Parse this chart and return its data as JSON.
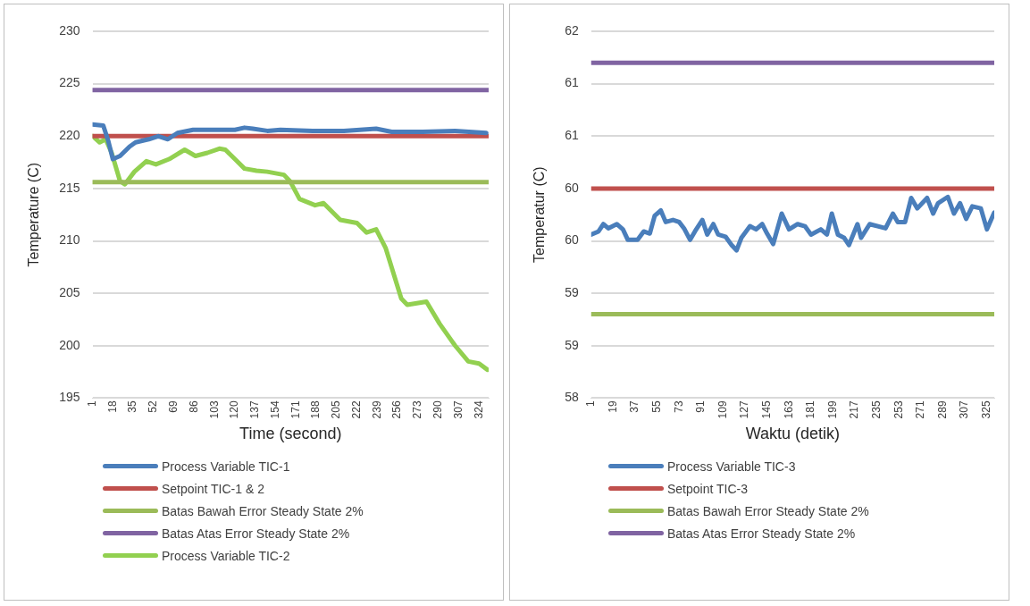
{
  "chart_data": [
    {
      "type": "line",
      "xlabel": "Time (second)",
      "ylabel": "Temperature (C)",
      "xlim": [
        1,
        332
      ],
      "xticks": [
        1,
        18,
        35,
        52,
        69,
        86,
        103,
        120,
        137,
        154,
        171,
        188,
        205,
        222,
        239,
        256,
        273,
        290,
        307,
        324
      ],
      "ylim": [
        195,
        230
      ],
      "yticks": [
        195,
        200,
        205,
        210,
        215,
        220,
        225,
        230
      ],
      "grid": "y",
      "legend": "bottom",
      "marker": "none",
      "series": [
        {
          "name": "Process Variable TIC-1",
          "color": "#4a7ebb",
          "x": [
            1,
            10,
            14,
            18,
            24,
            32,
            37,
            48,
            56,
            64,
            72,
            85,
            104,
            120,
            128,
            135,
            147,
            158,
            185,
            211,
            238,
            251,
            277,
            304,
            330
          ],
          "values": [
            221.1,
            221.0,
            219.6,
            217.8,
            218.1,
            219.0,
            219.4,
            219.7,
            220.0,
            219.7,
            220.3,
            220.6,
            220.6,
            220.6,
            220.8,
            220.7,
            220.5,
            220.6,
            220.5,
            220.5,
            220.7,
            220.4,
            220.4,
            220.5,
            220.3
          ]
        },
        {
          "name": "Setpoint TIC-1 & 2",
          "color": "#c0504d",
          "x": [
            1,
            332
          ],
          "values": [
            220,
            220
          ]
        },
        {
          "name": "Batas Bawah Error Steady State 2%",
          "color": "#9bbb59",
          "x": [
            1,
            332
          ],
          "values": [
            215.6,
            215.6
          ]
        },
        {
          "name": "Batas Atas Error Steady State 2%",
          "color": "#8064a2",
          "x": [
            1,
            332
          ],
          "values": [
            224.4,
            224.4
          ]
        },
        {
          "name": "Process Variable TIC-2",
          "color": "#92d050",
          "x": [
            1,
            7,
            12,
            17,
            24,
            28,
            36,
            46,
            54,
            65,
            78,
            87,
            97,
            107,
            112,
            120,
            128,
            138,
            147,
            161,
            166,
            174,
            187,
            194,
            208,
            222,
            230,
            238,
            246,
            259,
            264,
            280,
            291,
            304,
            315,
            324,
            331
          ],
          "values": [
            220.0,
            219.4,
            219.7,
            218.4,
            215.7,
            215.4,
            216.6,
            217.6,
            217.3,
            217.8,
            218.7,
            218.1,
            218.4,
            218.8,
            218.7,
            217.8,
            216.9,
            216.7,
            216.6,
            216.3,
            215.7,
            214.0,
            213.4,
            213.6,
            212.0,
            211.7,
            210.8,
            211.1,
            209.3,
            204.5,
            203.9,
            204.2,
            202.1,
            200.0,
            198.5,
            198.3,
            197.7
          ]
        }
      ]
    },
    {
      "type": "line",
      "xlabel": "Waktu (detik)",
      "ylabel": "Temperatur (C)",
      "xlim": [
        1,
        331
      ],
      "xticks": [
        1,
        19,
        37,
        55,
        73,
        91,
        109,
        127,
        145,
        163,
        181,
        199,
        217,
        235,
        253,
        271,
        289,
        307,
        325
      ],
      "ylim": [
        58,
        61.5
      ],
      "yticks": [
        58,
        {
          "value": 58.5,
          "label": "59"
        },
        59,
        {
          "value": 59.5,
          "label": "60"
        },
        60,
        {
          "value": 60.5,
          "label": "61"
        },
        61,
        {
          "value": 61.5,
          "label": "62"
        }
      ],
      "grid": "y",
      "legend": "bottom",
      "marker": "none",
      "series": [
        {
          "name": "Process Variable TIC-3",
          "color": "#4a7ebb",
          "x": [
            1,
            7,
            11,
            15,
            22,
            27,
            31,
            39,
            44,
            49,
            53,
            58,
            62,
            68,
            73,
            77,
            82,
            87,
            92,
            96,
            101,
            105,
            111,
            116,
            120,
            124,
            131,
            136,
            141,
            145,
            150,
            157,
            163,
            170,
            176,
            181,
            189,
            194,
            198,
            203,
            208,
            212,
            219,
            222,
            229,
            242,
            248,
            252,
            258,
            263,
            268,
            276,
            281,
            285,
            293,
            298,
            303,
            308,
            313,
            320,
            325,
            331
          ],
          "values": [
            59.56,
            59.59,
            59.66,
            59.62,
            59.66,
            59.61,
            59.51,
            59.51,
            59.59,
            59.57,
            59.74,
            59.79,
            59.68,
            59.7,
            59.68,
            59.62,
            59.51,
            59.61,
            59.7,
            59.56,
            59.66,
            59.56,
            59.54,
            59.46,
            59.41,
            59.53,
            59.64,
            59.61,
            59.66,
            59.57,
            59.47,
            59.76,
            59.61,
            59.66,
            59.64,
            59.56,
            59.61,
            59.56,
            59.76,
            59.56,
            59.53,
            59.46,
            59.66,
            59.53,
            59.66,
            59.62,
            59.76,
            59.68,
            59.68,
            59.91,
            59.81,
            59.91,
            59.76,
            59.86,
            59.92,
            59.76,
            59.86,
            59.71,
            59.83,
            59.81,
            59.61,
            59.77
          ]
        },
        {
          "name": "Setpoint TIC-3",
          "color": "#c0504d",
          "x": [
            1,
            331
          ],
          "values": [
            60,
            60
          ]
        },
        {
          "name": "Batas Bawah Error Steady State 2%",
          "color": "#9bbb59",
          "x": [
            1,
            331
          ],
          "values": [
            58.8,
            58.8
          ]
        },
        {
          "name": "Batas Atas Error Steady State 2%",
          "color": "#8064a2",
          "x": [
            1,
            331
          ],
          "values": [
            61.2,
            61.2
          ]
        }
      ]
    }
  ]
}
